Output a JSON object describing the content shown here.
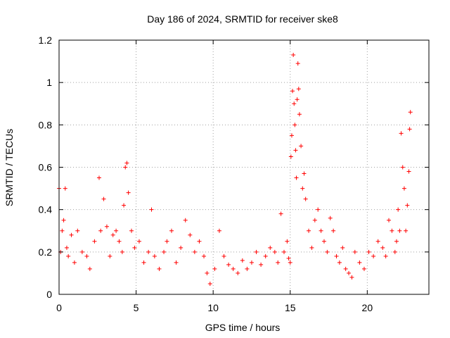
{
  "chart_data": {
    "type": "scatter",
    "title": "Day 186 of 2024, SRMTID for receiver ske8",
    "xlabel": "GPS time / hours",
    "ylabel": "SRMTID / TECUs",
    "xlim": [
      0,
      24
    ],
    "ylim": [
      0,
      1.2
    ],
    "xticks": [
      0,
      5,
      10,
      15,
      20
    ],
    "xtick_labels": [
      "0",
      "5",
      "10",
      "15",
      "20"
    ],
    "yticks": [
      0,
      0.2,
      0.4,
      0.6,
      0.8,
      1.0,
      1.2
    ],
    "ytick_labels": [
      "0",
      "0.2",
      "0.4",
      "0.6",
      "0.8",
      "1",
      "1.2"
    ],
    "grid": true,
    "marker": "+",
    "series": [
      {
        "name": "SRMTID",
        "color": "#ff0000",
        "x": [
          0.0,
          0.1,
          0.2,
          0.3,
          0.4,
          0.5,
          0.6,
          0.8,
          1.0,
          1.2,
          1.5,
          1.8,
          2.0,
          2.3,
          2.6,
          2.7,
          2.9,
          3.1,
          3.3,
          3.5,
          3.7,
          3.9,
          4.1,
          4.2,
          4.3,
          4.4,
          4.5,
          4.7,
          4.9,
          5.2,
          5.5,
          5.8,
          6.0,
          6.2,
          6.5,
          6.8,
          7.0,
          7.3,
          7.6,
          7.9,
          8.2,
          8.5,
          8.8,
          9.1,
          9.4,
          9.6,
          9.8,
          10.1,
          10.4,
          10.7,
          11.0,
          11.3,
          11.6,
          11.9,
          12.2,
          12.5,
          12.8,
          13.1,
          13.4,
          13.7,
          14.0,
          14.2,
          14.4,
          14.6,
          14.8,
          14.9,
          15.0,
          15.05,
          15.1,
          15.15,
          15.2,
          15.25,
          15.3,
          15.35,
          15.4,
          15.45,
          15.5,
          15.55,
          15.6,
          15.7,
          15.8,
          15.9,
          16.0,
          16.2,
          16.4,
          16.6,
          16.8,
          17.0,
          17.2,
          17.4,
          17.6,
          17.8,
          18.0,
          18.2,
          18.4,
          18.6,
          18.8,
          19.0,
          19.2,
          19.5,
          19.8,
          20.1,
          20.4,
          20.7,
          21.0,
          21.2,
          21.4,
          21.6,
          21.8,
          21.9,
          22.0,
          22.1,
          22.2,
          22.3,
          22.4,
          22.5,
          22.6,
          22.7,
          22.75,
          22.8
        ],
        "y": [
          0.5,
          0.2,
          0.3,
          0.35,
          0.5,
          0.22,
          0.18,
          0.28,
          0.15,
          0.3,
          0.2,
          0.18,
          0.12,
          0.25,
          0.55,
          0.3,
          0.45,
          0.32,
          0.18,
          0.28,
          0.3,
          0.25,
          0.2,
          0.42,
          0.6,
          0.62,
          0.48,
          0.3,
          0.22,
          0.25,
          0.15,
          0.2,
          0.4,
          0.18,
          0.12,
          0.2,
          0.25,
          0.3,
          0.15,
          0.22,
          0.35,
          0.28,
          0.2,
          0.25,
          0.18,
          0.1,
          0.05,
          0.12,
          0.3,
          0.18,
          0.14,
          0.12,
          0.1,
          0.16,
          0.12,
          0.15,
          0.2,
          0.14,
          0.18,
          0.22,
          0.2,
          0.15,
          0.38,
          0.2,
          0.25,
          0.17,
          0.15,
          0.65,
          0.75,
          0.96,
          1.13,
          0.9,
          0.8,
          0.68,
          0.55,
          0.92,
          1.09,
          0.97,
          0.85,
          0.7,
          0.5,
          0.57,
          0.45,
          0.3,
          0.22,
          0.35,
          0.4,
          0.3,
          0.25,
          0.2,
          0.36,
          0.3,
          0.18,
          0.15,
          0.22,
          0.12,
          0.1,
          0.08,
          0.2,
          0.15,
          0.12,
          0.2,
          0.18,
          0.25,
          0.22,
          0.18,
          0.35,
          0.3,
          0.2,
          0.25,
          0.4,
          0.3,
          0.76,
          0.6,
          0.5,
          0.3,
          0.42,
          0.58,
          0.78,
          0.86
        ]
      }
    ]
  }
}
